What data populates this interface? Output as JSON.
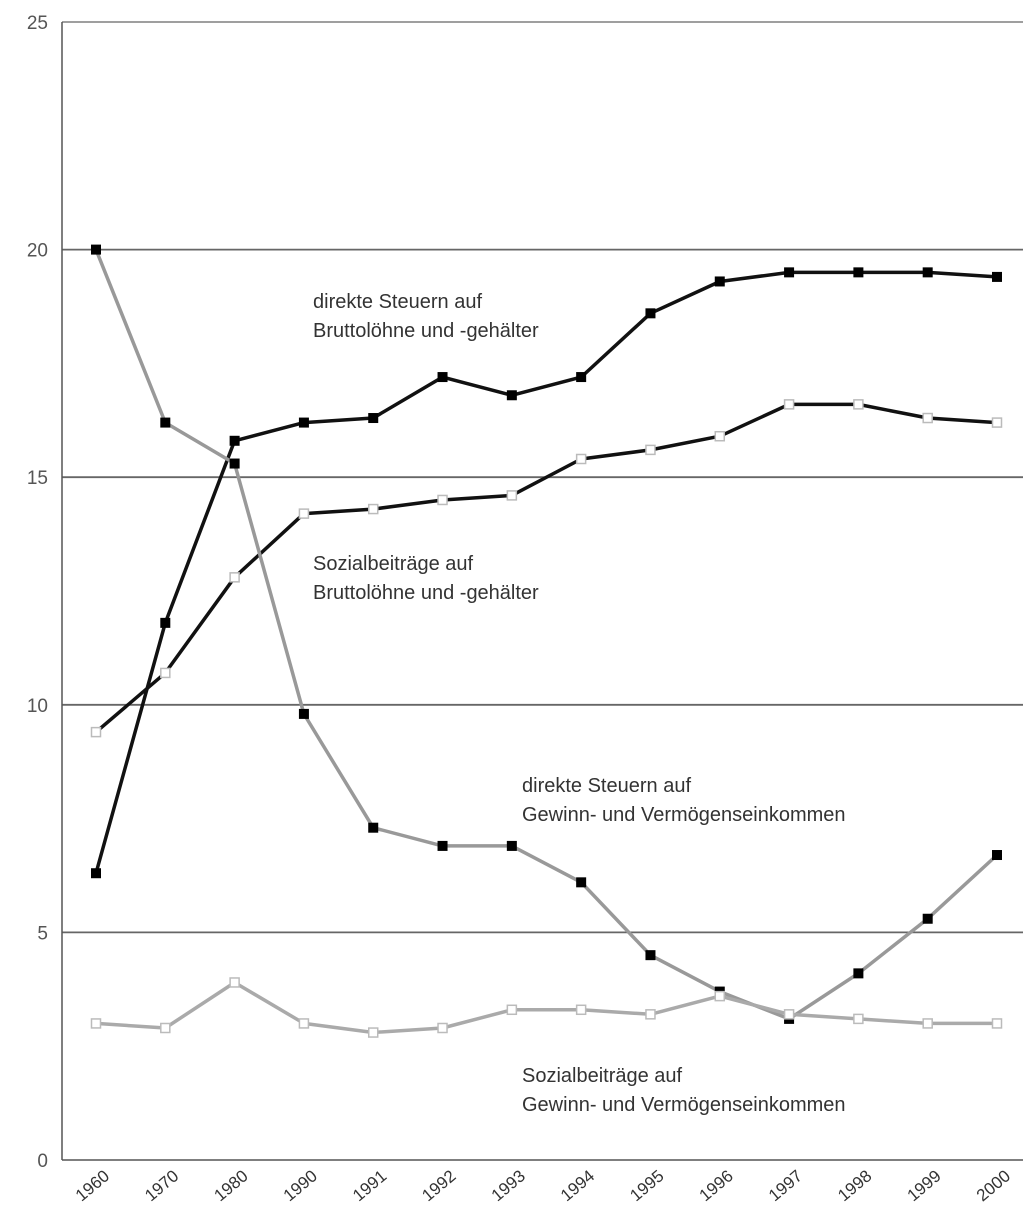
{
  "chart_data": {
    "type": "line",
    "categories": [
      "1960",
      "1970",
      "1980",
      "1990",
      "1991",
      "1992",
      "1993",
      "1994",
      "1995",
      "1996",
      "1997",
      "1998",
      "1999",
      "2000"
    ],
    "ylim": [
      0,
      25
    ],
    "yticks": [
      "0",
      "5",
      "10",
      "15",
      "20",
      "25"
    ],
    "grid": true,
    "series": [
      {
        "key": "steuern_lohn",
        "color": "#111111",
        "marker": "filled",
        "values": [
          6.3,
          11.8,
          15.8,
          16.2,
          16.3,
          17.2,
          16.8,
          17.2,
          18.6,
          19.3,
          19.5,
          19.5,
          19.5,
          19.4
        ]
      },
      {
        "key": "sozial_lohn",
        "color": "#111111",
        "marker": "hollow",
        "values": [
          9.4,
          10.7,
          12.8,
          14.2,
          14.3,
          14.5,
          14.6,
          15.4,
          15.6,
          15.9,
          16.6,
          16.6,
          16.3,
          16.2
        ]
      },
      {
        "key": "steuern_gewinn",
        "color": "#999999",
        "marker": "filled",
        "values": [
          20.0,
          16.2,
          15.3,
          9.8,
          7.3,
          6.9,
          6.9,
          6.1,
          4.5,
          3.7,
          3.1,
          4.1,
          5.3,
          6.7
        ]
      },
      {
        "key": "sozial_gewinn",
        "color": "#aaaaaa",
        "marker": "hollow",
        "values": [
          3.0,
          2.9,
          3.9,
          3.0,
          2.8,
          2.9,
          3.3,
          3.3,
          3.2,
          3.6,
          3.2,
          3.1,
          3.0,
          3.0
        ]
      }
    ],
    "annotations": [
      {
        "lines": [
          "direkte Steuern auf",
          "Bruttolöhne und -gehälter"
        ]
      },
      {
        "lines": [
          "Sozialbeiträge auf",
          "Bruttolöhne und -gehälter"
        ]
      },
      {
        "lines": [
          "direkte Steuern auf",
          "Gewinn- und Vermögenseinkommen"
        ]
      },
      {
        "lines": [
          "Sozialbeiträge auf",
          "Gewinn- und Vermögenseinkommen"
        ]
      }
    ]
  }
}
